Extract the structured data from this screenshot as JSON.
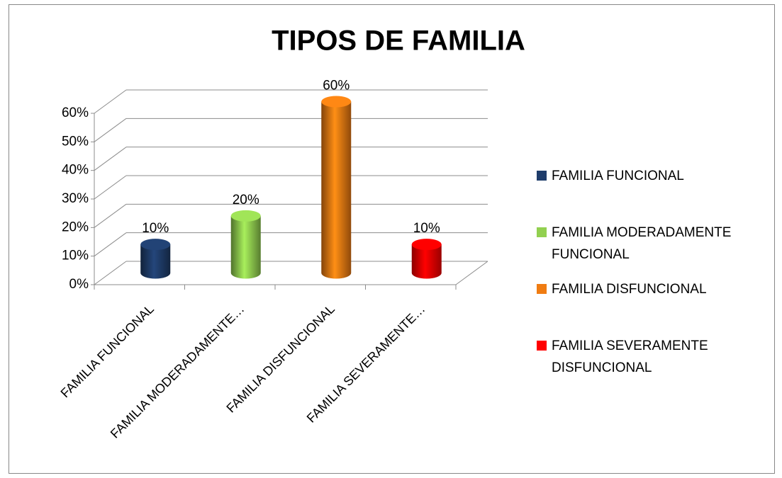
{
  "chart_data": {
    "type": "bar3d",
    "title": "TIPOS DE FAMILIA",
    "categories": [
      "FAMILIA FUNCIONAL",
      "FAMILIA MODERADAMENTE…",
      "FAMILIA DISFUNCIONAL",
      "FAMILIA SEVERAMENTE…"
    ],
    "values": [
      10,
      20,
      60,
      10
    ],
    "value_labels": [
      "10%",
      "20%",
      "60%",
      "10%"
    ],
    "colors": [
      "#1f3d6b",
      "#92d050",
      "#f07c12",
      "#ff0000"
    ],
    "legend": [
      "FAMILIA FUNCIONAL",
      "FAMILIA MODERADAMENTE FUNCIONAL",
      "FAMILIA DISFUNCIONAL",
      "FAMILIA SEVERAMENTE DISFUNCIONAL"
    ],
    "ylim": [
      0,
      60
    ],
    "yticks": [
      {
        "value": 0,
        "label": "0%"
      },
      {
        "value": 10,
        "label": "10%"
      },
      {
        "value": 20,
        "label": "20%"
      },
      {
        "value": 30,
        "label": "30%"
      },
      {
        "value": 40,
        "label": "40%"
      },
      {
        "value": 50,
        "label": "50%"
      },
      {
        "value": 60,
        "label": "60%"
      }
    ],
    "grid": true,
    "legend_position": "right"
  }
}
